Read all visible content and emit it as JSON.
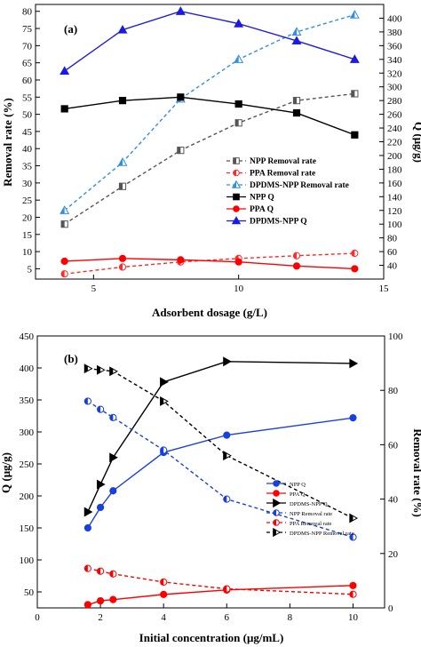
{
  "chart_data": [
    {
      "type": "line",
      "panel_label": "(a)",
      "xlabel": "Adsorbent dosage (g/L)",
      "ylabel": "Removal rate (%)",
      "y2label": "Q (μg/g)",
      "xlim": [
        3,
        15
      ],
      "ylim": [
        2,
        82
      ],
      "y2lim": [
        20,
        420
      ],
      "xticks": [
        5,
        10,
        15
      ],
      "yticks": [
        5,
        10,
        15,
        20,
        25,
        30,
        35,
        40,
        45,
        50,
        55,
        60,
        65,
        70,
        75,
        80
      ],
      "y2ticks": [
        40,
        60,
        80,
        100,
        120,
        140,
        160,
        180,
        200,
        220,
        240,
        260,
        280,
        300,
        320,
        340,
        360,
        380,
        400
      ],
      "legend_position": "center-right",
      "x": [
        4,
        6,
        8,
        10,
        12,
        14
      ],
      "series": [
        {
          "name": "NPP Removal rate",
          "axis": "left",
          "color": "#555555",
          "style": "dashed",
          "marker": "half-square",
          "values": [
            18,
            29,
            39.5,
            47.5,
            54,
            56
          ]
        },
        {
          "name": "PPA Removal rate",
          "axis": "left",
          "color": "#ff2a2a",
          "style": "dashed",
          "marker": "half-circle",
          "values": [
            3.5,
            5.5,
            7,
            8,
            8.8,
            9.5
          ]
        },
        {
          "name": "DPDMS-NPP  Removal rate",
          "axis": "left",
          "color": "#2f8fe0",
          "style": "dashed",
          "marker": "half-triangle",
          "values": [
            22,
            36,
            54.5,
            66,
            74,
            79
          ]
        },
        {
          "name": "NPP Q",
          "axis": "right",
          "color": "#000000",
          "style": "solid",
          "marker": "square",
          "values": [
            268,
            280,
            285,
            275,
            262,
            230
          ]
        },
        {
          "name": "PPA Q",
          "axis": "right",
          "color": "#ff0000",
          "style": "solid",
          "marker": "circle",
          "values": [
            46,
            50,
            48,
            45,
            39,
            35
          ]
        },
        {
          "name": "DPDMS-NPP  Q",
          "axis": "right",
          "color": "#1a1ae6",
          "style": "solid",
          "marker": "triangle",
          "values": [
            323,
            383,
            410,
            392,
            367,
            340
          ]
        }
      ]
    },
    {
      "type": "line",
      "panel_label": "(b)",
      "xlabel": "Initial concentration (μg/mL)",
      "ylabel": "Q (μg/g)",
      "y2label": "Removal rate (%)",
      "xlim": [
        0,
        11
      ],
      "ylim": [
        25,
        450
      ],
      "y2lim": [
        0,
        100
      ],
      "xticks": [
        0,
        2,
        4,
        6,
        8,
        10
      ],
      "yticks": [
        50,
        100,
        150,
        200,
        250,
        300,
        350,
        400,
        450
      ],
      "y2ticks": [
        0,
        20,
        40,
        60,
        80,
        100
      ],
      "legend_position": "right",
      "x": [
        1.6,
        2,
        2.4,
        4,
        6,
        10
      ],
      "series": [
        {
          "name": "NPP Q",
          "axis": "left",
          "color": "#1a3fe0",
          "style": "solid",
          "marker": "circle",
          "values": [
            150,
            182,
            208,
            268,
            295,
            322
          ]
        },
        {
          "name": "PPA Q",
          "axis": "left",
          "color": "#ff0000",
          "style": "solid",
          "marker": "circle",
          "values": [
            30,
            36,
            38,
            46,
            53,
            60
          ]
        },
        {
          "name": "DPDMS-NPP Q",
          "axis": "left",
          "color": "#000000",
          "style": "solid",
          "marker": "triangle-right",
          "values": [
            175,
            218,
            260,
            378,
            410,
            407
          ]
        },
        {
          "name": "NPP Removal rate",
          "axis": "right",
          "color": "#1a3fe0",
          "style": "dashed",
          "marker": "half-circle",
          "values": [
            76,
            73,
            70,
            58,
            40,
            26
          ]
        },
        {
          "name": "PPA Removal rate",
          "axis": "right",
          "color": "#ff0000",
          "style": "dashed",
          "marker": "half-circle",
          "values": [
            14.5,
            13.5,
            12.5,
            9.5,
            7,
            5
          ]
        },
        {
          "name": "DPDMS-NPP Removal rate",
          "axis": "right",
          "color": "#000000",
          "style": "dashed",
          "marker": "half-triangle-right",
          "values": [
            88,
            87.5,
            87,
            76,
            56,
            33
          ]
        }
      ]
    }
  ]
}
